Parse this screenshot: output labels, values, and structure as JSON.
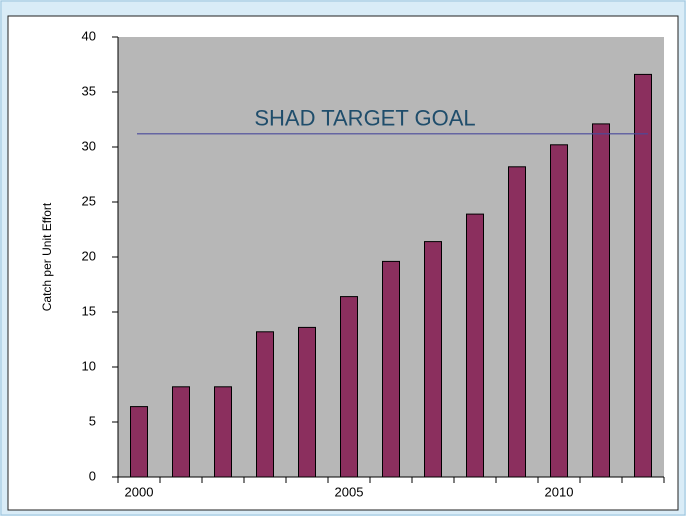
{
  "chart_data": {
    "type": "bar",
    "y_label": "Catch per Unit Effort",
    "categories": [
      "2000",
      null,
      null,
      null,
      null,
      "2005",
      null,
      null,
      null,
      null,
      "2010",
      null,
      null
    ],
    "values": [
      6.4,
      8.2,
      8.2,
      13.2,
      13.6,
      16.4,
      19.6,
      21.4,
      23.9,
      28.2,
      30.2,
      32.1,
      36.6
    ],
    "color": "#8b2f5e",
    "ylim": [
      0,
      40
    ],
    "yticks": [
      0,
      5,
      10,
      15,
      20,
      25,
      30,
      35,
      40
    ],
    "target": {
      "label": "SHAD TARGET GOAL",
      "value": 31.2,
      "color": "#4a4a9c"
    }
  }
}
